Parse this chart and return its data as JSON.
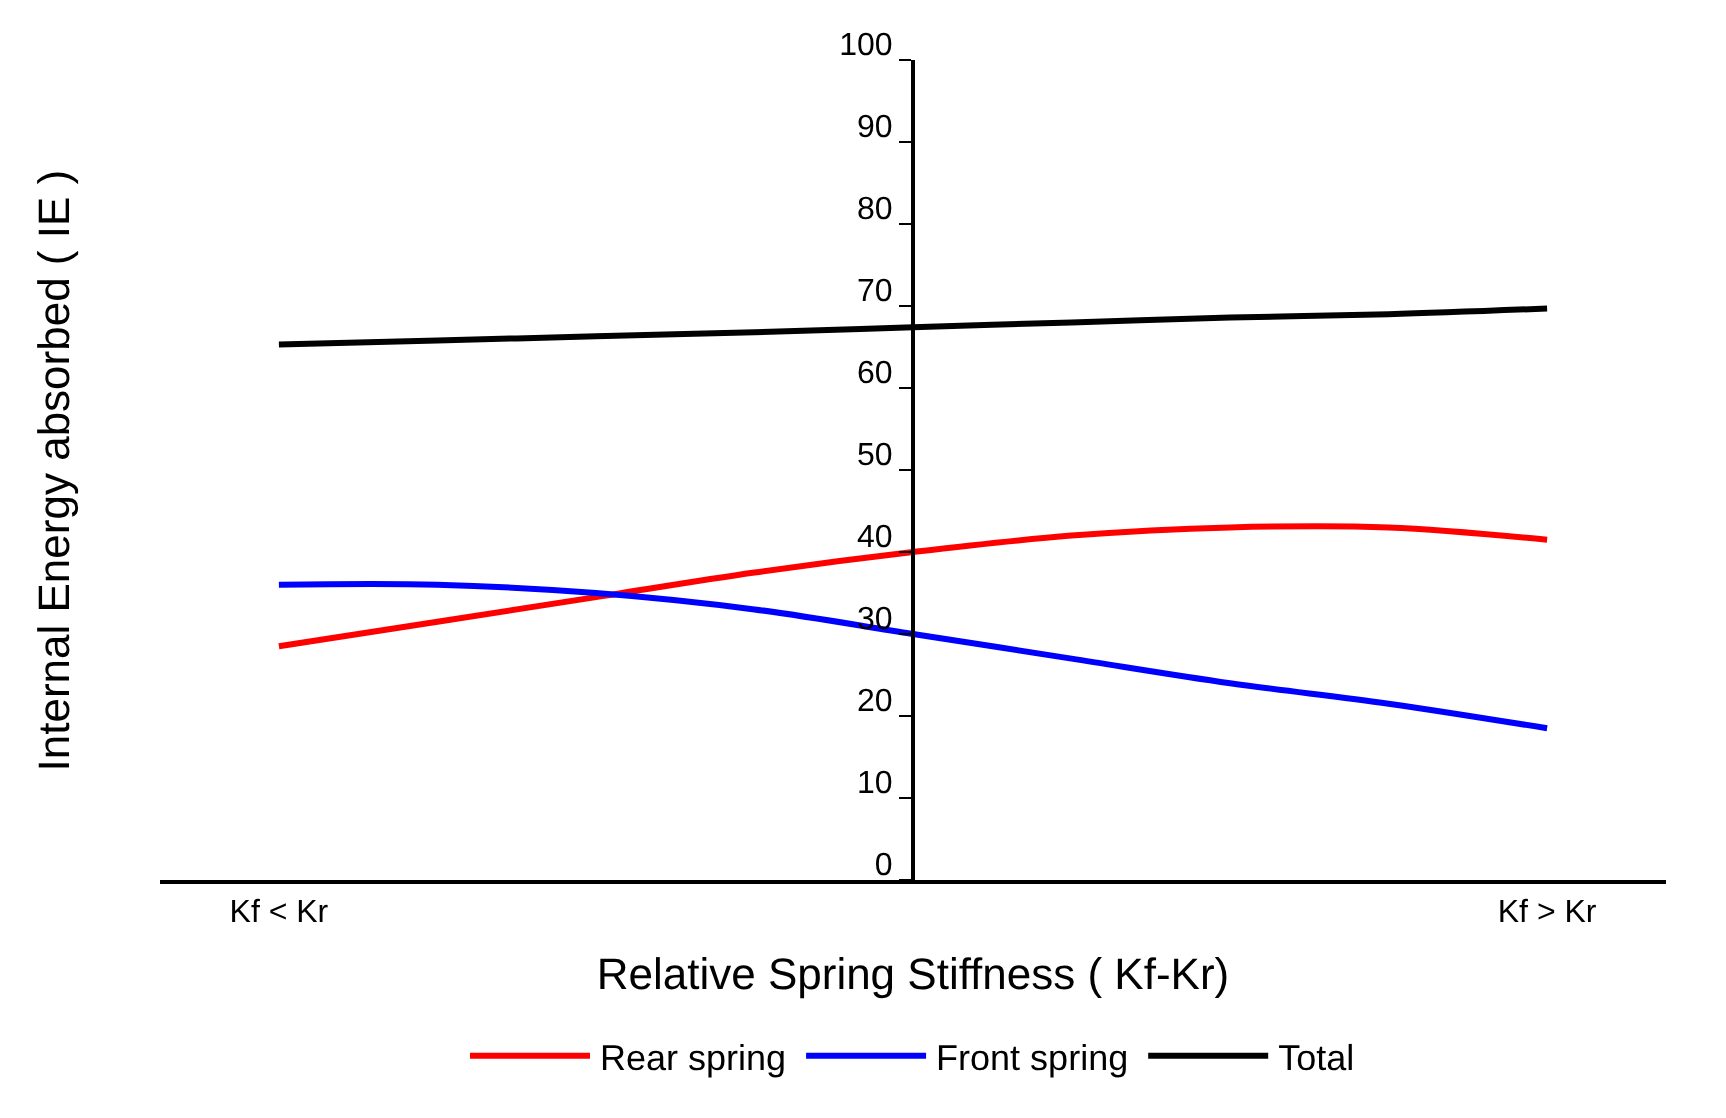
{
  "chart_data": {
    "type": "line",
    "xlabel": "Relative Spring Stiffness ( Kf-Kr)",
    "ylabel": "Internal Energy absorbed ( IE )",
    "categories": [
      "Kf < Kr",
      null,
      null,
      null,
      null,
      null,
      null,
      null,
      "Kf > Kr"
    ],
    "series": [
      {
        "name": "Rear spring",
        "color": "#ff0000",
        "values": [
          28.5,
          31.5,
          34.5,
          37.5,
          40,
          42,
          43,
          43,
          41.5
        ]
      },
      {
        "name": "Front spring",
        "color": "#0000ff",
        "values": [
          36,
          36,
          35,
          33,
          30,
          27,
          24,
          21.5,
          18.5
        ]
      },
      {
        "name": "Total",
        "color": "#000000",
        "values": [
          65.3,
          65.8,
          66.3,
          66.8,
          67.4,
          68,
          68.6,
          69,
          69.7
        ]
      }
    ],
    "ylim": [
      0,
      100
    ],
    "yticks": [
      0,
      10,
      20,
      30,
      40,
      50,
      60,
      70,
      80,
      90,
      100
    ],
    "legend": "bottom",
    "marker": "none",
    "line_style": "solid"
  }
}
